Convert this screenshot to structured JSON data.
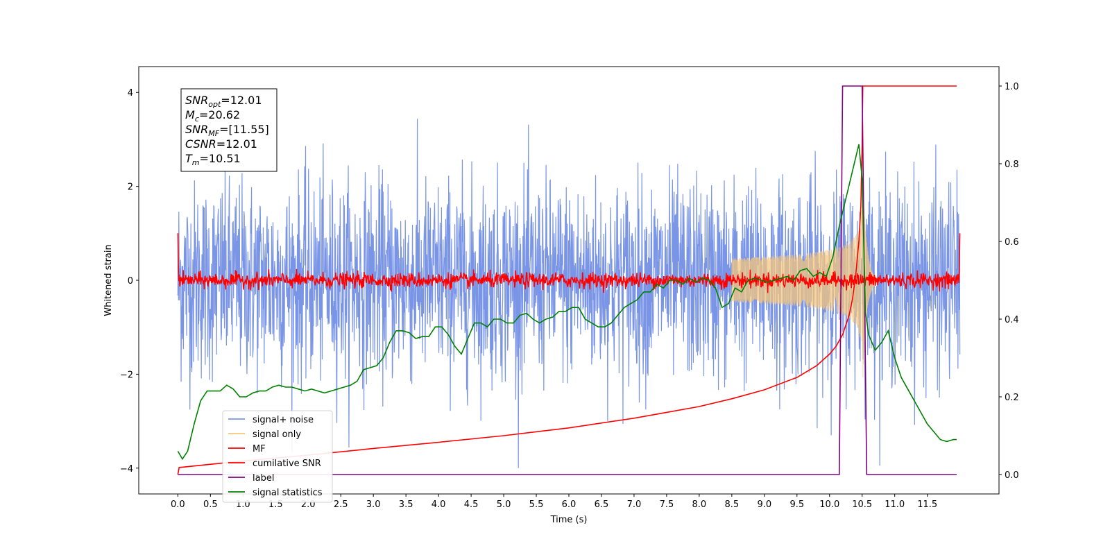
{
  "chart_data": {
    "type": "line",
    "xlabel": "Time (s)",
    "ylabel_left": "Whitened strain",
    "ylabel_right": "",
    "xlim": [
      -0.6,
      12.6
    ],
    "ylim_left": [
      -4.55,
      4.55
    ],
    "ylim_right": [
      -0.05,
      1.05
    ],
    "x_ticks": [
      0.0,
      0.5,
      1.0,
      1.5,
      2.0,
      2.5,
      3.0,
      3.5,
      4.0,
      4.5,
      5.0,
      5.5,
      6.0,
      6.5,
      7.0,
      7.5,
      8.0,
      8.5,
      9.0,
      9.5,
      10.0,
      10.5,
      11.0,
      11.5
    ],
    "x_tick_labels": [
      "0.0",
      "0.5",
      "1.0",
      "1.5",
      "2.0",
      "2.5",
      "3.0",
      "3.5",
      "4.0",
      "4.5",
      "5.0",
      "5.5",
      "6.0",
      "6.5",
      "7.0",
      "7.5",
      "8.0",
      "8.5",
      "9.0",
      "9.5",
      "10.0",
      "10.5",
      "11.0",
      "11.5"
    ],
    "y_left_ticks": [
      -4,
      -2,
      0,
      2,
      4
    ],
    "y_left_tick_labels": [
      "−4",
      "−2",
      "0",
      "2",
      "4"
    ],
    "y_right_ticks": [
      0.0,
      0.2,
      0.4,
      0.6,
      0.8,
      1.0
    ],
    "y_right_tick_labels": [
      "0.0",
      "0.2",
      "0.4",
      "0.6",
      "0.8",
      "1.0"
    ],
    "grid": false,
    "legend_position": "lower-left",
    "annotation": {
      "position": "top-left",
      "lines": [
        {
          "base": "SNR",
          "sub": "opt",
          "rest": "=12.01"
        },
        {
          "base": "M",
          "sub": "c",
          "rest": "=20.62"
        },
        {
          "base": "SNR",
          "sub": "MF",
          "rest": "=[11.55]"
        },
        {
          "base": "CSNR",
          "sub": "",
          "rest": "=12.01"
        },
        {
          "base": "T",
          "sub": "m",
          "rest": "=10.51"
        }
      ]
    },
    "series": [
      {
        "name": "signal+ noise",
        "axis": "left",
        "color": "#7a95e6",
        "kind": "noise",
        "x_range": [
          0.0,
          12.0
        ],
        "approx_std": 1.0,
        "approx_envelope": [
          -4.0,
          4.1
        ],
        "samples": 2400
      },
      {
        "name": "signal only",
        "axis": "left",
        "color": "#f5c77e",
        "kind": "chirp",
        "x_range": [
          8.5,
          10.51
        ],
        "merger_time": 10.51,
        "peak_amplitude": 2.2,
        "ringdown_end": 10.75
      },
      {
        "name": "MF",
        "axis": "left",
        "color": "#ff0000",
        "kind": "small-noise",
        "x_range": [
          0.0,
          12.0
        ],
        "approx_std": 0.08,
        "start_value": 1.0,
        "end_value": 1.0
      },
      {
        "name": "cumilative SNR",
        "axis": "right",
        "color": "#ff0000",
        "x": [
          0.0,
          0.02,
          1.0,
          2.0,
          3.0,
          4.0,
          5.0,
          6.0,
          7.0,
          7.5,
          8.0,
          8.5,
          9.0,
          9.5,
          9.8,
          10.0,
          10.1,
          10.2,
          10.3,
          10.35,
          10.4,
          10.45,
          10.48,
          10.5,
          10.51,
          10.55,
          11.0,
          11.5,
          11.95
        ],
        "values": [
          0.0,
          0.018,
          0.035,
          0.05,
          0.067,
          0.083,
          0.1,
          0.12,
          0.145,
          0.16,
          0.175,
          0.195,
          0.218,
          0.25,
          0.28,
          0.31,
          0.33,
          0.36,
          0.41,
          0.45,
          0.51,
          0.6,
          0.69,
          0.85,
          1.0,
          1.0,
          1.0,
          1.0,
          1.0
        ]
      },
      {
        "name": "label",
        "axis": "right",
        "color": "#800080",
        "x": [
          0.0,
          10.15,
          10.2,
          10.5,
          10.57,
          11.95
        ],
        "values": [
          0.0,
          0.0,
          1.0,
          1.0,
          0.0,
          0.0
        ]
      },
      {
        "name": "signal statistics",
        "axis": "right",
        "color": "#008000",
        "x": [
          0.0,
          0.07,
          0.15,
          0.25,
          0.35,
          0.45,
          0.55,
          0.65,
          0.75,
          0.85,
          0.95,
          1.05,
          1.15,
          1.25,
          1.35,
          1.45,
          1.55,
          1.65,
          1.75,
          1.85,
          1.95,
          2.05,
          2.15,
          2.25,
          2.35,
          2.45,
          2.55,
          2.65,
          2.75,
          2.85,
          2.95,
          3.05,
          3.15,
          3.25,
          3.35,
          3.45,
          3.55,
          3.65,
          3.75,
          3.85,
          3.95,
          4.05,
          4.15,
          4.25,
          4.35,
          4.45,
          4.55,
          4.65,
          4.75,
          4.85,
          4.95,
          5.05,
          5.15,
          5.25,
          5.35,
          5.45,
          5.55,
          5.65,
          5.75,
          5.85,
          5.95,
          6.05,
          6.15,
          6.25,
          6.35,
          6.45,
          6.55,
          6.65,
          6.75,
          6.85,
          6.95,
          7.05,
          7.15,
          7.25,
          7.35,
          7.45,
          7.55,
          7.65,
          7.75,
          7.85,
          7.95,
          8.05,
          8.15,
          8.25,
          8.35,
          8.45,
          8.55,
          8.65,
          8.75,
          8.85,
          8.95,
          9.05,
          9.15,
          9.25,
          9.35,
          9.45,
          9.55,
          9.65,
          9.75,
          9.85,
          9.95,
          10.05,
          10.15,
          10.25,
          10.35,
          10.45,
          10.5,
          10.55,
          10.6,
          10.7,
          10.8,
          10.9,
          11.0,
          11.1,
          11.2,
          11.3,
          11.4,
          11.5,
          11.6,
          11.7,
          11.8,
          11.9,
          11.95
        ],
        "values": [
          0.06,
          0.04,
          0.06,
          0.13,
          0.19,
          0.215,
          0.215,
          0.215,
          0.23,
          0.22,
          0.2,
          0.2,
          0.21,
          0.215,
          0.215,
          0.225,
          0.23,
          0.225,
          0.225,
          0.22,
          0.215,
          0.22,
          0.215,
          0.21,
          0.215,
          0.22,
          0.225,
          0.23,
          0.24,
          0.27,
          0.275,
          0.28,
          0.3,
          0.34,
          0.37,
          0.37,
          0.365,
          0.35,
          0.355,
          0.355,
          0.38,
          0.38,
          0.36,
          0.33,
          0.31,
          0.35,
          0.39,
          0.39,
          0.38,
          0.4,
          0.4,
          0.39,
          0.39,
          0.41,
          0.415,
          0.4,
          0.39,
          0.4,
          0.405,
          0.42,
          0.42,
          0.43,
          0.43,
          0.4,
          0.39,
          0.38,
          0.38,
          0.39,
          0.41,
          0.43,
          0.44,
          0.45,
          0.47,
          0.47,
          0.49,
          0.48,
          0.5,
          0.5,
          0.49,
          0.505,
          0.495,
          0.505,
          0.5,
          0.48,
          0.43,
          0.44,
          0.48,
          0.47,
          0.5,
          0.505,
          0.5,
          0.495,
          0.5,
          0.505,
          0.51,
          0.5,
          0.525,
          0.53,
          0.51,
          0.52,
          0.51,
          0.56,
          0.64,
          0.71,
          0.78,
          0.85,
          0.76,
          0.42,
          0.36,
          0.32,
          0.34,
          0.37,
          0.3,
          0.25,
          0.22,
          0.19,
          0.16,
          0.13,
          0.11,
          0.09,
          0.085,
          0.09,
          0.09
        ]
      }
    ]
  }
}
